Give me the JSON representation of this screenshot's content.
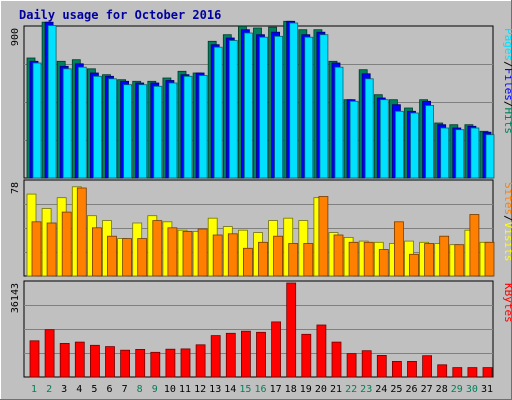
{
  "chart_data": {
    "type": "bar",
    "title": "Daily usage for October 2016",
    "categories": [
      "1",
      "2",
      "3",
      "4",
      "5",
      "6",
      "7",
      "8",
      "9",
      "10",
      "11",
      "12",
      "13",
      "14",
      "15",
      "16",
      "17",
      "18",
      "19",
      "20",
      "21",
      "22",
      "23",
      "24",
      "25",
      "26",
      "27",
      "28",
      "29",
      "30",
      "31"
    ],
    "weekend_days": [
      "1",
      "2",
      "8",
      "9",
      "15",
      "16",
      "22",
      "23",
      "29",
      "30"
    ],
    "colors": {
      "hits": "#00805c",
      "files": "#0000ff",
      "pages": "#00e0ff",
      "visits": "#ffff00",
      "sites": "#ff8000",
      "kbytes": "#ff0000",
      "weekday_label": "#000000",
      "weekend_label": "#00805c",
      "title": "#0000a0",
      "plot_bg": "#c0c0c0"
    },
    "panels": [
      {
        "id": "hits",
        "ymax_label": "900",
        "ymax": 900,
        "legend": [
          {
            "text": "Pages",
            "color": "#00e0ff"
          },
          {
            "text": "/",
            "color": "#000000"
          },
          {
            "text": "Files",
            "color": "#0000ff"
          },
          {
            "text": "/",
            "color": "#000000"
          },
          {
            "text": "Hits",
            "color": "#00805c"
          }
        ],
        "series": [
          {
            "name": "Hits",
            "values": [
              720,
              935,
              700,
              710,
              655,
              620,
              590,
              580,
              580,
              600,
              640,
              630,
              820,
              860,
              910,
              900,
              905,
              940,
              890,
              890,
              700,
              470,
              650,
              500,
              470,
              420,
              470,
              330,
              320,
              320,
              280
            ]
          },
          {
            "name": "Files",
            "values": [
              700,
              935,
              670,
              685,
              630,
              610,
              580,
              570,
              570,
              585,
              620,
              630,
              800,
              840,
              890,
              860,
              875,
              940,
              860,
              875,
              690,
              470,
              625,
              480,
              440,
              400,
              460,
              320,
              300,
              310,
              275
            ]
          },
          {
            "name": "Pages",
            "values": [
              690,
              915,
              655,
              665,
              610,
              595,
              560,
              560,
              550,
              570,
              610,
              615,
              785,
              825,
              870,
              845,
              850,
              930,
              845,
              860,
              665,
              460,
              595,
              470,
              400,
              390,
              435,
              300,
              290,
              300,
              260
            ]
          }
        ]
      },
      {
        "id": "visits",
        "ymax_label": "78",
        "ymax": 78,
        "legend": [
          {
            "text": "Sites",
            "color": "#ff8000"
          },
          {
            "text": "/",
            "color": "#000000"
          },
          {
            "text": "Visits",
            "color": "#ffff00"
          }
        ],
        "series": [
          {
            "name": "Visits",
            "values": [
              68,
              56,
              65,
              74,
              50,
              46,
              31,
              44,
              50,
              45,
              38,
              37,
              48,
              41,
              38,
              36,
              46,
              48,
              46,
              65,
              36,
              32,
              29,
              28,
              27,
              29,
              28,
              27,
              26,
              38,
              28
            ]
          },
          {
            "name": "Sites",
            "values": [
              45,
              44,
              53,
              73,
              40,
              33,
              31,
              31,
              46,
              40,
              37,
              39,
              34,
              35,
              23,
              28,
              33,
              27,
              27,
              66,
              34,
              28,
              28,
              22,
              45,
              18,
              27,
              33,
              26,
              51,
              28
            ]
          }
        ]
      },
      {
        "id": "kbytes",
        "ymax_label": "36143",
        "ymax": 36143,
        "legend": [
          {
            "text": "KBytes",
            "color": "#ff0000"
          }
        ],
        "series": [
          {
            "name": "KBytes",
            "values": [
              13900,
              18200,
              12900,
              13400,
              12200,
              11700,
              10300,
              10600,
              9500,
              10700,
              10800,
              12400,
              15900,
              16800,
              17600,
              17200,
              21200,
              36143,
              16400,
              20000,
              13400,
              9000,
              10100,
              8300,
              6000,
              6000,
              8200,
              4700,
              3600,
              3600,
              3600
            ]
          }
        ]
      }
    ]
  }
}
